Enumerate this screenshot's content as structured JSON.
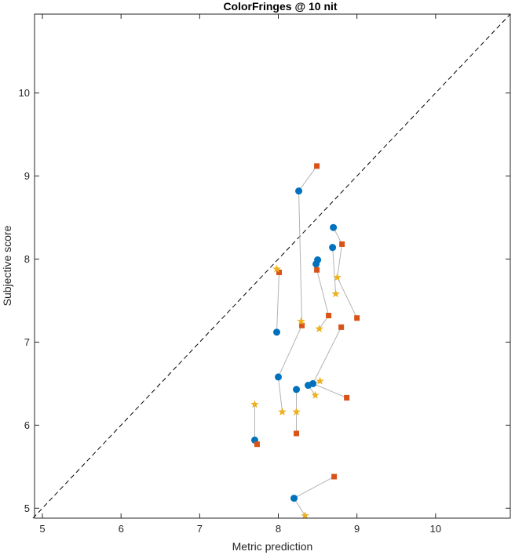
{
  "chart_data": {
    "type": "scatter",
    "title": "ColorFringes @ 10 nit",
    "xlabel": "Metric prediction",
    "ylabel": "Subjective score",
    "xlim": [
      4.9,
      10.95
    ],
    "ylim": [
      4.88,
      10.95
    ],
    "xticks": [
      5,
      6,
      7,
      8,
      9,
      10
    ],
    "yticks": [
      5,
      6,
      7,
      8,
      9,
      10
    ],
    "grid": false,
    "box": true,
    "reference_line": {
      "style": "dashed",
      "color": "#000000",
      "from": [
        4.88,
        4.88
      ],
      "to": [
        10.95,
        10.95
      ]
    },
    "connector_color": "#b3b3b3",
    "series": [
      {
        "marker": "circle",
        "color": "#0072BD",
        "points": [
          [
            8.26,
            8.82
          ],
          [
            8.7,
            8.38
          ],
          [
            8.5,
            7.99
          ],
          [
            8.69,
            8.14
          ],
          [
            8.48,
            7.94
          ],
          [
            7.98,
            7.12
          ],
          [
            8.0,
            6.58
          ],
          [
            8.23,
            6.43
          ],
          [
            8.38,
            6.48
          ],
          [
            8.44,
            6.5
          ],
          [
            7.7,
            5.82
          ],
          [
            8.2,
            5.12
          ]
        ]
      },
      {
        "marker": "square",
        "color": "#D95319",
        "points": [
          [
            8.49,
            9.12
          ],
          [
            8.81,
            8.18
          ],
          [
            8.49,
            7.87
          ],
          [
            8.64,
            7.32
          ],
          [
            9.0,
            7.29
          ],
          [
            8.01,
            7.84
          ],
          [
            8.3,
            7.2
          ],
          [
            8.8,
            7.18
          ],
          [
            8.87,
            6.33
          ],
          [
            8.23,
            5.9
          ],
          [
            7.73,
            5.77
          ],
          [
            8.71,
            5.38
          ]
        ]
      },
      {
        "marker": "star",
        "color": "#EDB120",
        "points": [
          [
            8.75,
            7.78
          ],
          [
            8.73,
            7.58
          ],
          [
            8.52,
            7.16
          ],
          [
            7.98,
            7.88
          ],
          [
            8.29,
            7.25
          ],
          [
            8.53,
            6.53
          ],
          [
            8.47,
            6.36
          ],
          [
            8.05,
            6.16
          ],
          [
            8.23,
            6.16
          ],
          [
            7.7,
            6.25
          ],
          [
            8.34,
            4.91
          ]
        ]
      }
    ],
    "connectors": [
      [
        [
          8.26,
          8.82
        ],
        [
          8.49,
          9.12
        ]
      ],
      [
        [
          8.26,
          8.82
        ],
        [
          8.3,
          7.2
        ]
      ],
      [
        [
          8.3,
          7.2
        ],
        [
          8.29,
          7.25
        ]
      ],
      [
        [
          8.7,
          8.38
        ],
        [
          8.81,
          8.18
        ]
      ],
      [
        [
          8.81,
          8.18
        ],
        [
          8.75,
          7.78
        ]
      ],
      [
        [
          8.69,
          8.14
        ],
        [
          8.73,
          7.58
        ]
      ],
      [
        [
          8.5,
          7.99
        ],
        [
          8.49,
          7.87
        ]
      ],
      [
        [
          8.48,
          7.94
        ],
        [
          8.49,
          7.87
        ]
      ],
      [
        [
          8.49,
          7.87
        ],
        [
          8.64,
          7.32
        ]
      ],
      [
        [
          8.64,
          7.32
        ],
        [
          8.52,
          7.16
        ]
      ],
      [
        [
          8.75,
          7.78
        ],
        [
          9.0,
          7.29
        ]
      ],
      [
        [
          7.98,
          7.12
        ],
        [
          8.01,
          7.84
        ]
      ],
      [
        [
          8.01,
          7.84
        ],
        [
          7.98,
          7.88
        ]
      ],
      [
        [
          8.0,
          6.58
        ],
        [
          8.3,
          7.2
        ]
      ],
      [
        [
          8.0,
          6.58
        ],
        [
          8.05,
          6.16
        ]
      ],
      [
        [
          8.23,
          6.43
        ],
        [
          8.23,
          5.9
        ]
      ],
      [
        [
          8.38,
          6.48
        ],
        [
          8.53,
          6.53
        ]
      ],
      [
        [
          8.44,
          6.5
        ],
        [
          8.8,
          7.18
        ]
      ],
      [
        [
          8.44,
          6.5
        ],
        [
          8.87,
          6.33
        ]
      ],
      [
        [
          8.38,
          6.48
        ],
        [
          8.47,
          6.36
        ]
      ],
      [
        [
          7.7,
          5.82
        ],
        [
          7.73,
          5.77
        ]
      ],
      [
        [
          7.7,
          5.82
        ],
        [
          7.7,
          6.25
        ]
      ],
      [
        [
          8.2,
          5.12
        ],
        [
          8.71,
          5.38
        ]
      ],
      [
        [
          8.2,
          5.12
        ],
        [
          8.34,
          4.91
        ]
      ]
    ]
  }
}
